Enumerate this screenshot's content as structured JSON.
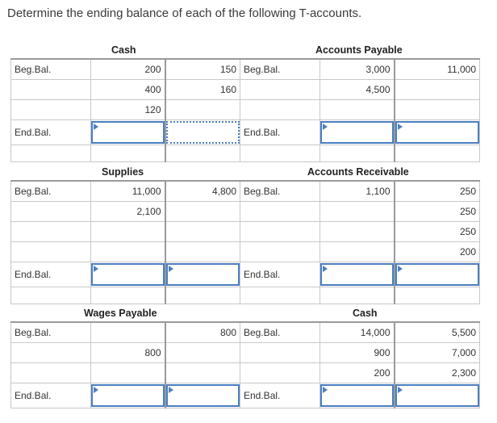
{
  "instruction": "Determine the ending balance of each of the following T-accounts.",
  "labels": {
    "beg": "Beg.Bal.",
    "end": "End.Bal."
  },
  "groups": [
    {
      "left": {
        "title": "Cash",
        "debits": [
          "200",
          "400",
          "120"
        ],
        "credits": [
          "150",
          "160",
          ""
        ]
      },
      "right": {
        "title": "Accounts Payable",
        "debits": [
          "3,000",
          "4,500",
          ""
        ],
        "credits": [
          "11,000",
          "",
          ""
        ]
      }
    },
    {
      "left": {
        "title": "Supplies",
        "debits": [
          "11,000",
          "2,100",
          "",
          ""
        ],
        "credits": [
          "4,800",
          "",
          "",
          ""
        ]
      },
      "right": {
        "title": "Accounts Receivable",
        "debits": [
          "1,100",
          "",
          "",
          ""
        ],
        "credits": [
          "250",
          "250",
          "250",
          "200"
        ]
      }
    },
    {
      "left": {
        "title": "Wages Payable",
        "debits": [
          "",
          "800",
          ""
        ],
        "credits": [
          "800",
          "",
          ""
        ]
      },
      "right": {
        "title": "Cash",
        "debits": [
          "14,000",
          "900",
          "200"
        ],
        "credits": [
          "5,500",
          "7,000",
          "2,300"
        ]
      }
    }
  ],
  "answers": {
    "value": ""
  }
}
